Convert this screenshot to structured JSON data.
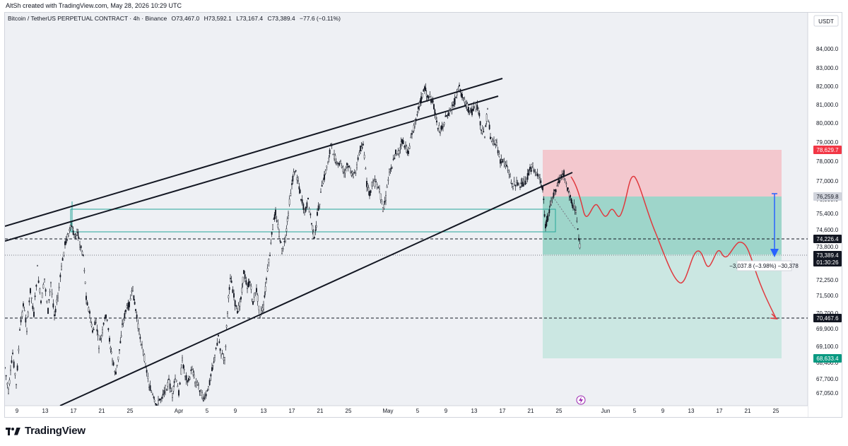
{
  "credit": "AltSh created with TradingView.com, May 28, 2026 10:29 UTC",
  "brand": "TradingView",
  "chart_data": {
    "type": "candlestick",
    "header": "Bitcoin / TetherUS PERPETUAL CONTRACT · 4h · Binance",
    "ohlc": {
      "O": "O73,467.0",
      "H": "H73,592.1",
      "L": "L73,167.4",
      "C": "C73,389.4",
      "change": "−77.6 (−0.11%)"
    },
    "currency": "USDT",
    "y_ticks": [
      "84,000.0",
      "83,000.0",
      "82,000.0",
      "81,000.0",
      "80,000.0",
      "79,000.0",
      "78,000.0",
      "77,000.0",
      "76,000.0",
      "75,400.0",
      "74,600.0",
      "73,800.0",
      "72,250.0",
      "71,500.0",
      "70,700.0",
      "69,900.0",
      "69,100.0",
      "68,400.0",
      "67,700.0",
      "67,050.0"
    ],
    "x_ticks": [
      "9",
      "13",
      "17",
      "21",
      "25",
      "Apr",
      "5",
      "9",
      "13",
      "17",
      "21",
      "25",
      "May",
      "5",
      "9",
      "13",
      "17",
      "21",
      "25",
      "Jun",
      "5",
      "9",
      "13",
      "17",
      "21",
      "25"
    ],
    "price_labels": [
      {
        "text": "78,629.7",
        "color": "#f23645"
      },
      {
        "text": "76,259.8",
        "color": "#d1d4dc"
      },
      {
        "text": "74,226.4",
        "color": "#131722"
      },
      {
        "text": "73,389.4",
        "color": "#131722"
      },
      {
        "text": "01:30:26",
        "color": "#131722"
      },
      {
        "text": "70,467.6",
        "color": "#131722"
      },
      {
        "text": "68,633.4",
        "color": "#089981"
      }
    ],
    "measure_label": "−3,037.8 (−3.98%) −30,378",
    "candle_path_close": [
      [
        7,
        520
      ],
      [
        12,
        555
      ],
      [
        18,
        500
      ],
      [
        23,
        545
      ],
      [
        28,
        470
      ],
      [
        33,
        430
      ],
      [
        38,
        465
      ],
      [
        43,
        410
      ],
      [
        48,
        445
      ],
      [
        53,
        380
      ],
      [
        58,
        430
      ],
      [
        63,
        395
      ],
      [
        68,
        440
      ],
      [
        72,
        400
      ],
      [
        77,
        445
      ],
      [
        82,
        420
      ],
      [
        87,
        380
      ],
      [
        92,
        345
      ],
      [
        97,
        330
      ],
      [
        101,
        320
      ],
      [
        105,
        335
      ],
      [
        109,
        325
      ],
      [
        113,
        345
      ],
      [
        118,
        360
      ],
      [
        122,
        420
      ],
      [
        127,
        445
      ],
      [
        131,
        470
      ],
      [
        136,
        455
      ],
      [
        140,
        490
      ],
      [
        145,
        470
      ],
      [
        150,
        445
      ],
      [
        155,
        480
      ],
      [
        159,
        510
      ],
      [
        164,
        530
      ],
      [
        169,
        495
      ],
      [
        173,
        460
      ],
      [
        178,
        440
      ],
      [
        183,
        430
      ],
      [
        188,
        410
      ],
      [
        192,
        440
      ],
      [
        197,
        470
      ],
      [
        201,
        490
      ],
      [
        206,
        515
      ],
      [
        211,
        545
      ],
      [
        216,
        560
      ],
      [
        220,
        575
      ],
      [
        224,
        570
      ],
      [
        229,
        560
      ],
      [
        234,
        550
      ],
      [
        239,
        540
      ],
      [
        244,
        560
      ],
      [
        248,
        535
      ],
      [
        253,
        555
      ],
      [
        258,
        510
      ],
      [
        262,
        530
      ],
      [
        267,
        540
      ],
      [
        272,
        520
      ],
      [
        276,
        540
      ],
      [
        281,
        545
      ],
      [
        286,
        560
      ],
      [
        290,
        565
      ],
      [
        295,
        550
      ],
      [
        300,
        520
      ],
      [
        304,
        505
      ],
      [
        309,
        475
      ],
      [
        313,
        500
      ],
      [
        318,
        510
      ],
      [
        322,
        440
      ],
      [
        326,
        390
      ],
      [
        331,
        420
      ],
      [
        336,
        445
      ],
      [
        341,
        420
      ],
      [
        345,
        385
      ],
      [
        350,
        405
      ],
      [
        354,
        400
      ],
      [
        358,
        430
      ],
      [
        363,
        410
      ],
      [
        368,
        445
      ],
      [
        373,
        435
      ],
      [
        377,
        395
      ],
      [
        382,
        360
      ],
      [
        386,
        320
      ],
      [
        390,
        300
      ],
      [
        395,
        330
      ],
      [
        399,
        355
      ],
      [
        404,
        340
      ],
      [
        408,
        300
      ],
      [
        413,
        260
      ],
      [
        417,
        240
      ],
      [
        422,
        255
      ],
      [
        426,
        280
      ],
      [
        431,
        300
      ],
      [
        436,
        285
      ],
      [
        441,
        315
      ],
      [
        445,
        340
      ],
      [
        449,
        305
      ],
      [
        454,
        275
      ],
      [
        459,
        250
      ],
      [
        464,
        230
      ],
      [
        468,
        205
      ],
      [
        473,
        220
      ],
      [
        477,
        235
      ],
      [
        482,
        230
      ],
      [
        487,
        245
      ],
      [
        491,
        235
      ],
      [
        496,
        240
      ],
      [
        500,
        250
      ],
      [
        505,
        235
      ],
      [
        510,
        210
      ],
      [
        514,
        205
      ],
      [
        519,
        260
      ],
      [
        523,
        275
      ],
      [
        528,
        255
      ],
      [
        532,
        260
      ],
      [
        537,
        270
      ],
      [
        542,
        295
      ],
      [
        546,
        280
      ],
      [
        551,
        240
      ],
      [
        555,
        235
      ],
      [
        560,
        215
      ],
      [
        565,
        215
      ],
      [
        569,
        200
      ],
      [
        574,
        210
      ],
      [
        578,
        215
      ],
      [
        583,
        190
      ],
      [
        587,
        175
      ],
      [
        592,
        150
      ],
      [
        596,
        140
      ],
      [
        601,
        125
      ],
      [
        605,
        135
      ],
      [
        610,
        140
      ],
      [
        614,
        150
      ],
      [
        618,
        175
      ],
      [
        623,
        185
      ],
      [
        627,
        175
      ],
      [
        632,
        165
      ],
      [
        636,
        160
      ],
      [
        641,
        150
      ],
      [
        645,
        140
      ],
      [
        650,
        125
      ],
      [
        654,
        135
      ],
      [
        659,
        145
      ],
      [
        663,
        155
      ],
      [
        668,
        160
      ],
      [
        672,
        150
      ],
      [
        677,
        155
      ],
      [
        681,
        185
      ],
      [
        686,
        190
      ],
      [
        690,
        155
      ],
      [
        694,
        195
      ],
      [
        699,
        200
      ],
      [
        703,
        205
      ],
      [
        708,
        230
      ],
      [
        712,
        225
      ],
      [
        717,
        235
      ],
      [
        722,
        250
      ],
      [
        726,
        265
      ],
      [
        731,
        255
      ],
      [
        736,
        265
      ],
      [
        740,
        260
      ],
      [
        745,
        255
      ],
      [
        750,
        240
      ],
      [
        754,
        235
      ],
      [
        759,
        245
      ],
      [
        764,
        255
      ],
      [
        768,
        265
      ],
      [
        772,
        320
      ],
      [
        776,
        305
      ],
      [
        780,
        285
      ],
      [
        785,
        270
      ],
      [
        790,
        260
      ],
      [
        794,
        250
      ],
      [
        798,
        245
      ],
      [
        803,
        265
      ],
      [
        807,
        280
      ],
      [
        811,
        290
      ],
      [
        815,
        300
      ],
      [
        819,
        335
      ],
      [
        822,
        365
      ]
    ]
  }
}
